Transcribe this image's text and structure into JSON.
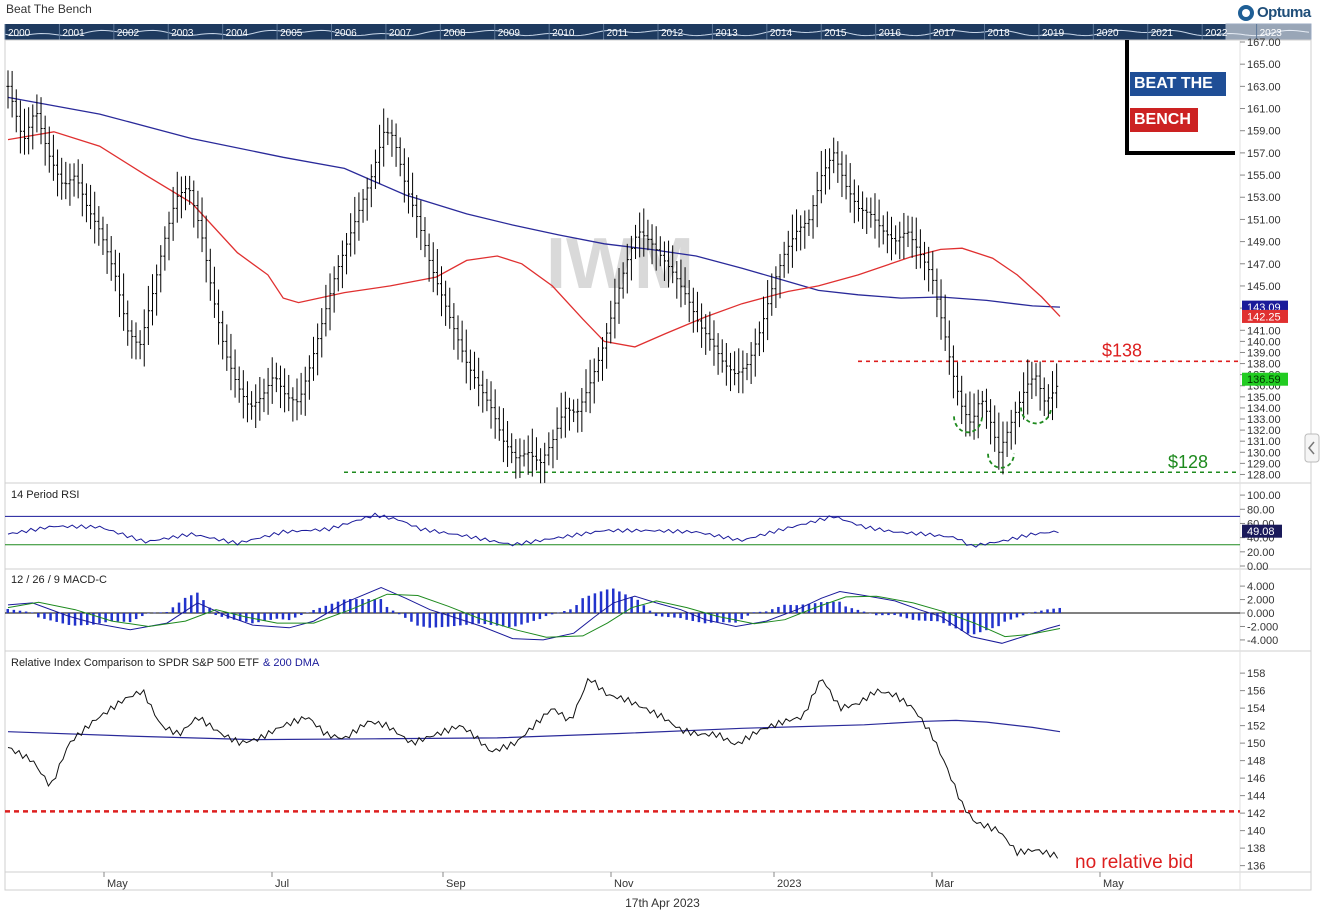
{
  "header": {
    "title": "Beat The Bench",
    "logo_text": "Optuma"
  },
  "brand": {
    "line1": "BEAT THE",
    "line2": "BENCH"
  },
  "footer": {
    "date": "17th Apr 2023"
  },
  "colors": {
    "price": "#000000",
    "ma_short": "#e03030",
    "ma_long": "#2a2a9a",
    "support": "#1e8a1e",
    "resistance": "#dd1f1f",
    "last_price": "#22cc22",
    "rsi": "#1a1a9a",
    "macd_line": "#1a1a9a",
    "signal_line": "#1e8a1e",
    "histogram": "#2233cc"
  },
  "overview": {
    "years": [
      "2000",
      "2001",
      "2002",
      "2003",
      "2004",
      "2005",
      "2006",
      "2007",
      "2008",
      "2009",
      "2010",
      "2011",
      "2012",
      "2013",
      "2014",
      "2015",
      "2016",
      "2017",
      "2018",
      "2019",
      "2020",
      "2021",
      "2022",
      "2023"
    ]
  },
  "chart_data": [
    {
      "type": "candlestick",
      "watermark": "IWM",
      "x_labels": [
        "May",
        "Jul",
        "Sep",
        "Nov",
        "2023",
        "Mar",
        "May"
      ],
      "y_ticks": [
        128,
        129,
        130,
        131,
        132,
        133,
        134,
        135,
        136,
        137,
        138,
        139,
        140,
        141,
        143,
        145,
        147,
        149,
        151,
        153,
        155,
        157,
        159,
        161,
        163,
        165,
        167
      ],
      "ylim": [
        127.5,
        167
      ],
      "price_badges": [
        {
          "text": "143.09",
          "value": 143.09,
          "color": "#1a1a9a"
        },
        {
          "text": "142.25",
          "value": 142.25,
          "color": "#e03030"
        },
        {
          "text": "136.59",
          "value": 136.59,
          "color": "#22cc22"
        }
      ],
      "levels": [
        {
          "label": "$138",
          "value": 138.2,
          "color": "#dd1f1f"
        },
        {
          "label": "$128",
          "value": 128.2,
          "color": "#1e8a1e"
        }
      ],
      "price_path": [
        [
          0,
          163
        ],
        [
          5,
          158
        ],
        [
          9,
          161
        ],
        [
          13,
          157
        ],
        [
          18,
          154
        ],
        [
          22,
          155
        ],
        [
          26,
          152
        ],
        [
          30,
          150
        ],
        [
          35,
          146
        ],
        [
          39,
          141
        ],
        [
          43,
          139.5
        ],
        [
          47,
          144
        ],
        [
          51,
          149
        ],
        [
          55,
          153
        ],
        [
          59,
          154
        ],
        [
          63,
          150
        ],
        [
          67,
          144
        ],
        [
          71,
          139
        ],
        [
          75,
          136
        ],
        [
          79,
          134
        ],
        [
          83,
          135
        ],
        [
          87,
          137
        ],
        [
          91,
          135
        ],
        [
          95,
          134.5
        ],
        [
          99,
          138
        ],
        [
          103,
          142
        ],
        [
          107,
          146
        ],
        [
          111,
          149
        ],
        [
          115,
          152
        ],
        [
          119,
          155
        ],
        [
          123,
          159
        ],
        [
          126,
          158.5
        ],
        [
          130,
          154
        ],
        [
          134,
          151
        ],
        [
          138,
          147
        ],
        [
          142,
          144
        ],
        [
          146,
          141
        ],
        [
          150,
          138
        ],
        [
          154,
          136
        ],
        [
          158,
          134
        ],
        [
          162,
          131
        ],
        [
          166,
          129.5
        ],
        [
          170,
          130
        ],
        [
          174,
          129
        ],
        [
          178,
          131
        ],
        [
          182,
          134
        ],
        [
          186,
          133.5
        ],
        [
          190,
          136
        ],
        [
          194,
          139
        ],
        [
          198,
          143
        ],
        [
          202,
          147
        ],
        [
          206,
          150
        ],
        [
          210,
          149
        ],
        [
          214,
          147.5
        ],
        [
          218,
          146
        ],
        [
          222,
          144
        ],
        [
          226,
          141.5
        ],
        [
          230,
          140
        ],
        [
          234,
          138
        ],
        [
          238,
          137
        ],
        [
          242,
          138
        ],
        [
          246,
          141
        ],
        [
          250,
          145
        ],
        [
          254,
          148
        ],
        [
          258,
          150
        ],
        [
          262,
          151
        ],
        [
          266,
          155
        ],
        [
          270,
          157
        ],
        [
          274,
          154
        ],
        [
          278,
          152
        ],
        [
          282,
          151.5
        ],
        [
          286,
          150
        ],
        [
          290,
          149
        ],
        [
          294,
          150
        ],
        [
          298,
          148
        ],
        [
          302,
          146
        ],
        [
          306,
          141
        ],
        [
          309,
          137
        ],
        [
          312,
          134
        ],
        [
          315,
          132.5
        ],
        [
          318,
          135
        ],
        [
          321,
          133
        ],
        [
          324,
          130
        ],
        [
          327,
          132
        ],
        [
          330,
          134
        ],
        [
          333,
          136
        ],
        [
          336,
          137
        ],
        [
          339,
          134.5
        ],
        [
          342,
          135.5
        ],
        [
          345,
          137
        ],
        [
          348,
          136.6
        ]
      ],
      "ma_short": [
        [
          0,
          158.2
        ],
        [
          15,
          158.9
        ],
        [
          30,
          157.6
        ],
        [
          45,
          155
        ],
        [
          60,
          152.5
        ],
        [
          75,
          148
        ],
        [
          85,
          146
        ],
        [
          90,
          143.9
        ],
        [
          95,
          143.5
        ],
        [
          110,
          144.4
        ],
        [
          125,
          145
        ],
        [
          140,
          145.8
        ],
        [
          150,
          147.3
        ],
        [
          160,
          147.7
        ],
        [
          168,
          147
        ],
        [
          178,
          145
        ],
        [
          188,
          142
        ],
        [
          195,
          140
        ],
        [
          205,
          139.5
        ],
        [
          215,
          140.7
        ],
        [
          228,
          142.2
        ],
        [
          240,
          143.4
        ],
        [
          255,
          144.5
        ],
        [
          265,
          145
        ],
        [
          278,
          146
        ],
        [
          295,
          147.6
        ],
        [
          305,
          148.3
        ],
        [
          312,
          148.4
        ],
        [
          322,
          147.5
        ],
        [
          330,
          146
        ],
        [
          338,
          144
        ],
        [
          344,
          142.25
        ]
      ],
      "ma_long": [
        [
          0,
          162
        ],
        [
          30,
          160.5
        ],
        [
          60,
          158.3
        ],
        [
          90,
          156.6
        ],
        [
          110,
          155.6
        ],
        [
          130,
          153.2
        ],
        [
          150,
          151.5
        ],
        [
          165,
          150.5
        ],
        [
          180,
          149.6
        ],
        [
          195,
          148.8
        ],
        [
          210,
          148.3
        ],
        [
          225,
          147.7
        ],
        [
          240,
          146.6
        ],
        [
          255,
          145.4
        ],
        [
          265,
          144.6
        ],
        [
          278,
          144.2
        ],
        [
          292,
          143.9
        ],
        [
          305,
          144
        ],
        [
          320,
          143.7
        ],
        [
          335,
          143.2
        ],
        [
          344,
          143.09
        ]
      ]
    },
    {
      "type": "line",
      "title": "14 Period RSI",
      "y_ticks": [
        100,
        80,
        60,
        40,
        20,
        0
      ],
      "tick_labels": [
        "100.00",
        "80.00",
        "60.00",
        "40.00",
        "20.00",
        "0.00"
      ],
      "ylim": [
        0,
        110
      ],
      "bands": [
        70,
        30
      ],
      "last_value": {
        "text": "49.08",
        "value": 49.08
      },
      "points": [
        [
          0,
          45
        ],
        [
          15,
          56
        ],
        [
          30,
          55
        ],
        [
          45,
          34
        ],
        [
          60,
          45
        ],
        [
          75,
          32
        ],
        [
          90,
          48
        ],
        [
          105,
          52
        ],
        [
          120,
          72
        ],
        [
          128,
          65
        ],
        [
          135,
          52
        ],
        [
          150,
          42
        ],
        [
          165,
          30
        ],
        [
          180,
          40
        ],
        [
          195,
          50
        ],
        [
          210,
          50
        ],
        [
          225,
          48
        ],
        [
          240,
          36
        ],
        [
          250,
          48
        ],
        [
          270,
          70
        ],
        [
          280,
          55
        ],
        [
          290,
          48
        ],
        [
          300,
          45
        ],
        [
          310,
          40
        ],
        [
          315,
          28
        ],
        [
          325,
          35
        ],
        [
          335,
          45
        ],
        [
          344,
          49
        ]
      ]
    },
    {
      "type": "macd",
      "title": "12 / 26 / 9 MACD-C",
      "y_ticks": [
        4,
        2,
        0,
        -2,
        -4
      ],
      "tick_labels": [
        "4.000",
        "2.000",
        "0.000",
        "-2.000",
        "-4.000"
      ],
      "ylim": [
        -5.2,
        5.8
      ],
      "macd": [
        [
          0,
          1.2
        ],
        [
          8,
          1.5
        ],
        [
          20,
          -0.5
        ],
        [
          28,
          -1.5
        ],
        [
          40,
          -2.5
        ],
        [
          52,
          -1.5
        ],
        [
          62,
          1.5
        ],
        [
          72,
          -0.5
        ],
        [
          80,
          -1.8
        ],
        [
          92,
          -2.2
        ],
        [
          100,
          -1.2
        ],
        [
          110,
          1.5
        ],
        [
          122,
          3.8
        ],
        [
          130,
          2.2
        ],
        [
          138,
          0.5
        ],
        [
          145,
          -0.5
        ],
        [
          155,
          -2
        ],
        [
          165,
          -3.8
        ],
        [
          175,
          -4
        ],
        [
          185,
          -3
        ],
        [
          192,
          -0.5
        ],
        [
          198,
          1.5
        ],
        [
          205,
          2.5
        ],
        [
          212,
          1.5
        ],
        [
          220,
          0.5
        ],
        [
          228,
          -1
        ],
        [
          238,
          -2
        ],
        [
          248,
          -1.2
        ],
        [
          258,
          0.5
        ],
        [
          266,
          2.2
        ],
        [
          272,
          3.2
        ],
        [
          280,
          2.6
        ],
        [
          290,
          1.8
        ],
        [
          298,
          0.5
        ],
        [
          305,
          -0.5
        ],
        [
          315,
          -3.5
        ],
        [
          325,
          -4.5
        ],
        [
          332,
          -3.5
        ],
        [
          340,
          -2.3
        ],
        [
          344,
          -1.8
        ]
      ],
      "signal": [
        [
          0,
          0.8
        ],
        [
          10,
          1.6
        ],
        [
          22,
          0.5
        ],
        [
          34,
          -1.2
        ],
        [
          46,
          -2
        ],
        [
          58,
          -1.2
        ],
        [
          68,
          0.5
        ],
        [
          78,
          -0.6
        ],
        [
          88,
          -1.5
        ],
        [
          100,
          -1.5
        ],
        [
          112,
          0.5
        ],
        [
          124,
          2.8
        ],
        [
          134,
          2.6
        ],
        [
          144,
          1
        ],
        [
          154,
          -0.8
        ],
        [
          166,
          -2.5
        ],
        [
          176,
          -3.6
        ],
        [
          188,
          -3.4
        ],
        [
          196,
          -1.5
        ],
        [
          204,
          0.8
        ],
        [
          212,
          1.8
        ],
        [
          222,
          0.8
        ],
        [
          232,
          -0.5
        ],
        [
          244,
          -1.6
        ],
        [
          254,
          -1
        ],
        [
          264,
          0.8
        ],
        [
          274,
          2.4
        ],
        [
          284,
          2.5
        ],
        [
          296,
          1.5
        ],
        [
          306,
          0.2
        ],
        [
          316,
          -1.5
        ],
        [
          326,
          -3.5
        ],
        [
          334,
          -3.2
        ],
        [
          344,
          -2.3
        ]
      ]
    },
    {
      "type": "line",
      "title": "Relative Index Comparison to SPDR S&P 500 ETF",
      "legend_extra": "& 200 DMA",
      "y_ticks": [
        136,
        138,
        140,
        142,
        144,
        146,
        148,
        150,
        152,
        154,
        156,
        158
      ],
      "ylim": [
        135.5,
        159.5
      ],
      "level": 142.2,
      "annotation": "no relative bid",
      "points": [
        [
          0,
          149.5
        ],
        [
          8,
          148
        ],
        [
          14,
          145
        ],
        [
          20,
          150
        ],
        [
          28,
          152.5
        ],
        [
          38,
          155
        ],
        [
          44,
          156
        ],
        [
          50,
          152
        ],
        [
          56,
          151
        ],
        [
          62,
          153
        ],
        [
          70,
          151
        ],
        [
          76,
          150
        ],
        [
          82,
          150.5
        ],
        [
          90,
          152
        ],
        [
          98,
          153
        ],
        [
          104,
          151
        ],
        [
          110,
          150.5
        ],
        [
          118,
          152.5
        ],
        [
          124,
          152
        ],
        [
          132,
          150
        ],
        [
          140,
          151
        ],
        [
          148,
          152
        ],
        [
          152,
          151
        ],
        [
          158,
          149
        ],
        [
          166,
          150
        ],
        [
          172,
          152
        ],
        [
          178,
          154
        ],
        [
          184,
          152.5
        ],
        [
          190,
          157.5
        ],
        [
          196,
          155.5
        ],
        [
          202,
          155
        ],
        [
          208,
          154
        ],
        [
          214,
          153
        ],
        [
          220,
          151.5
        ],
        [
          226,
          151
        ],
        [
          232,
          151
        ],
        [
          238,
          149.8
        ],
        [
          246,
          151.5
        ],
        [
          254,
          152.5
        ],
        [
          260,
          153
        ],
        [
          266,
          157.5
        ],
        [
          272,
          154
        ],
        [
          278,
          154.5
        ],
        [
          284,
          156
        ],
        [
          290,
          155.5
        ],
        [
          296,
          154
        ],
        [
          302,
          151
        ],
        [
          306,
          148
        ],
        [
          312,
          143
        ],
        [
          316,
          141
        ],
        [
          320,
          140.5
        ],
        [
          324,
          140
        ],
        [
          330,
          137.5
        ],
        [
          336,
          137.8
        ],
        [
          344,
          137
        ]
      ],
      "dma": [
        [
          0,
          151.3
        ],
        [
          40,
          150.8
        ],
        [
          80,
          150.4
        ],
        [
          120,
          150.5
        ],
        [
          160,
          150.6
        ],
        [
          200,
          151.1
        ],
        [
          240,
          151.7
        ],
        [
          280,
          152.1
        ],
        [
          300,
          152.5
        ],
        [
          310,
          152.6
        ],
        [
          320,
          152.4
        ],
        [
          335,
          151.8
        ],
        [
          344,
          151.3
        ]
      ]
    }
  ]
}
